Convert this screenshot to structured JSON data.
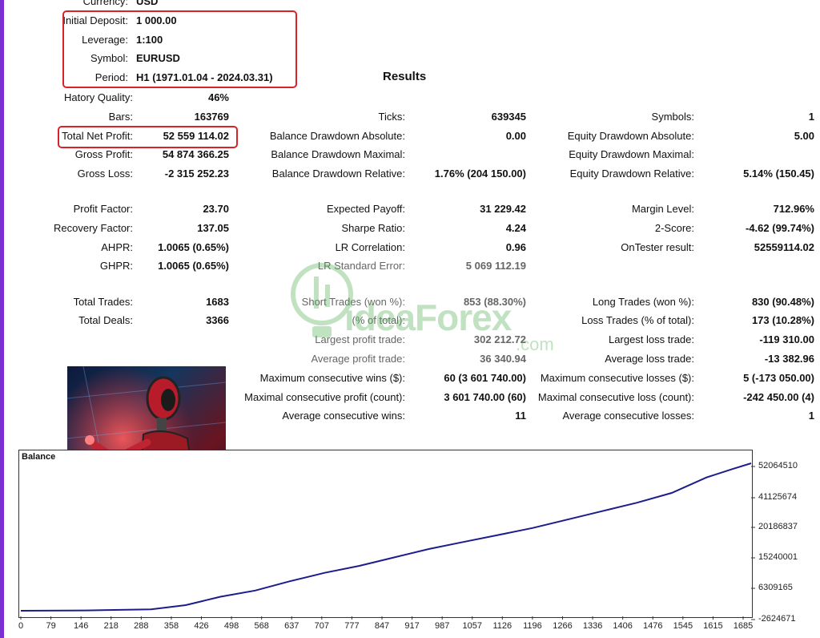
{
  "settings": [
    {
      "label": "Currency:",
      "value": "USD"
    },
    {
      "label": "Initial Deposit:",
      "value": "1 000.00"
    },
    {
      "label": "Leverage:",
      "value": "1:100"
    },
    {
      "label": "Symbol:",
      "value": "EURUSD"
    },
    {
      "label": "Period:",
      "value": "H1 (1971.01.04 - 2024.03.31)"
    }
  ],
  "results_title": "Results",
  "col1": [
    {
      "label": "Hatory Quality:",
      "value": "46%"
    },
    {
      "label": "Bars:",
      "value": "163769"
    },
    {
      "label": "Total Net Profit:",
      "value": "52 559 114.02"
    },
    {
      "label": "Gross Profit:",
      "value": "54 874 366.25"
    },
    {
      "label": "Gross Loss:",
      "value": "-2 315 252.23"
    },
    {
      "label": "Profit Factor:",
      "value": "23.70"
    },
    {
      "label": "Recovery Factor:",
      "value": "137.05"
    },
    {
      "label": "AHPR:",
      "value": "1.0065 (0.65%)"
    },
    {
      "label": "GHPR:",
      "value": "1.0065 (0.65%)"
    },
    {
      "label": "Total Trades:",
      "value": "1683"
    },
    {
      "label": "Total Deals:",
      "value": "3366"
    }
  ],
  "col2": [
    {
      "label": "Ticks:",
      "value": "639345"
    },
    {
      "label": "Balance Drawdown Absolute:",
      "value": "0.00"
    },
    {
      "label": "Balance Drawdown Maximal:",
      "value": ""
    },
    {
      "label": "Balance Drawdown Relative:",
      "value": "1.76% (204 150.00)"
    },
    {
      "label": "Expected Payoff:",
      "value": "31 229.42"
    },
    {
      "label": "Sharpe Ratio:",
      "value": "4.24"
    },
    {
      "label": "LR Correlation:",
      "value": "0.96"
    },
    {
      "label": "LR Standard Error:",
      "value": "5 069 112.19"
    },
    {
      "label": "Short Trades (won %):",
      "value": "853 (88.30%)"
    },
    {
      "label": "(% of total):",
      "value": ""
    },
    {
      "label": "Largest profit trade:",
      "value": "302 212.72"
    },
    {
      "label": "Average profit trade:",
      "value": "36 340.94"
    },
    {
      "label": "Maximum consecutive wins ($):",
      "value": "60 (3 601 740.00)"
    },
    {
      "label": "Maximal consecutive profit (count):",
      "value": "3 601 740.00 (60)"
    },
    {
      "label": "Average consecutive wins:",
      "value": "11"
    }
  ],
  "col3": [
    {
      "label": "Symbols:",
      "value": "1"
    },
    {
      "label": "Equity Drawdown Absolute:",
      "value": "5.00"
    },
    {
      "label": "Equity Drawdown Maximal:",
      "value": ""
    },
    {
      "label": "Equity Drawdown Relative:",
      "value": "5.14% (150.45)"
    },
    {
      "label": "Margin Level:",
      "value": "712.96%"
    },
    {
      "label": "2-Score:",
      "value": "-4.62 (99.74%)"
    },
    {
      "label": "OnTester result:",
      "value": "52559114.02"
    },
    {
      "label": "Long Trades (won %):",
      "value": "830 (90.48%)"
    },
    {
      "label": "Loss Trades (% of total):",
      "value": "173 (10.28%)"
    },
    {
      "label": "Largest loss trade:",
      "value": "-119 310.00"
    },
    {
      "label": "Average loss trade:",
      "value": "-13 382.96"
    },
    {
      "label": "Maximum consecutive losses ($):",
      "value": "5 (-173 050.00)"
    },
    {
      "label": "Maximal consecutive loss (count):",
      "value": "-242 450.00 (4)"
    },
    {
      "label": "Average consecutive losses:",
      "value": "1"
    }
  ],
  "watermark": {
    "text": "ideaForex",
    "suffix": ".com"
  },
  "colors": {
    "highlight": "#d8222a",
    "balance_line": "#1c1c8c",
    "watermark": "#4caf50"
  },
  "chart_data": {
    "type": "line",
    "title": "Balance",
    "x_ticks": [
      "0",
      "79",
      "146",
      "218",
      "288",
      "358",
      "426",
      "498",
      "568",
      "637",
      "707",
      "777",
      "847",
      "917",
      "987",
      "1057",
      "1126",
      "1196",
      "1266",
      "1336",
      "1406",
      "1476",
      "1545",
      "1615",
      "1685"
    ],
    "y_ticks": [
      "52064510",
      "41125674",
      "20186837",
      "15240001",
      "6309165",
      "-2624671"
    ],
    "series": [
      {
        "x": [
          0,
          150,
          300,
          380,
          460,
          540,
          620,
          700,
          780,
          860,
          940,
          1020,
          1100,
          1180,
          1260,
          1340,
          1420,
          1500,
          1580,
          1640,
          1683
        ],
        "y": [
          0,
          100000,
          500000,
          2000000,
          5000000,
          7200000,
          10500000,
          13500000,
          16000000,
          19000000,
          22000000,
          24500000,
          27000000,
          29500000,
          32500000,
          35500000,
          38500000,
          42000000,
          47500000,
          50500000,
          52559114
        ]
      }
    ]
  }
}
